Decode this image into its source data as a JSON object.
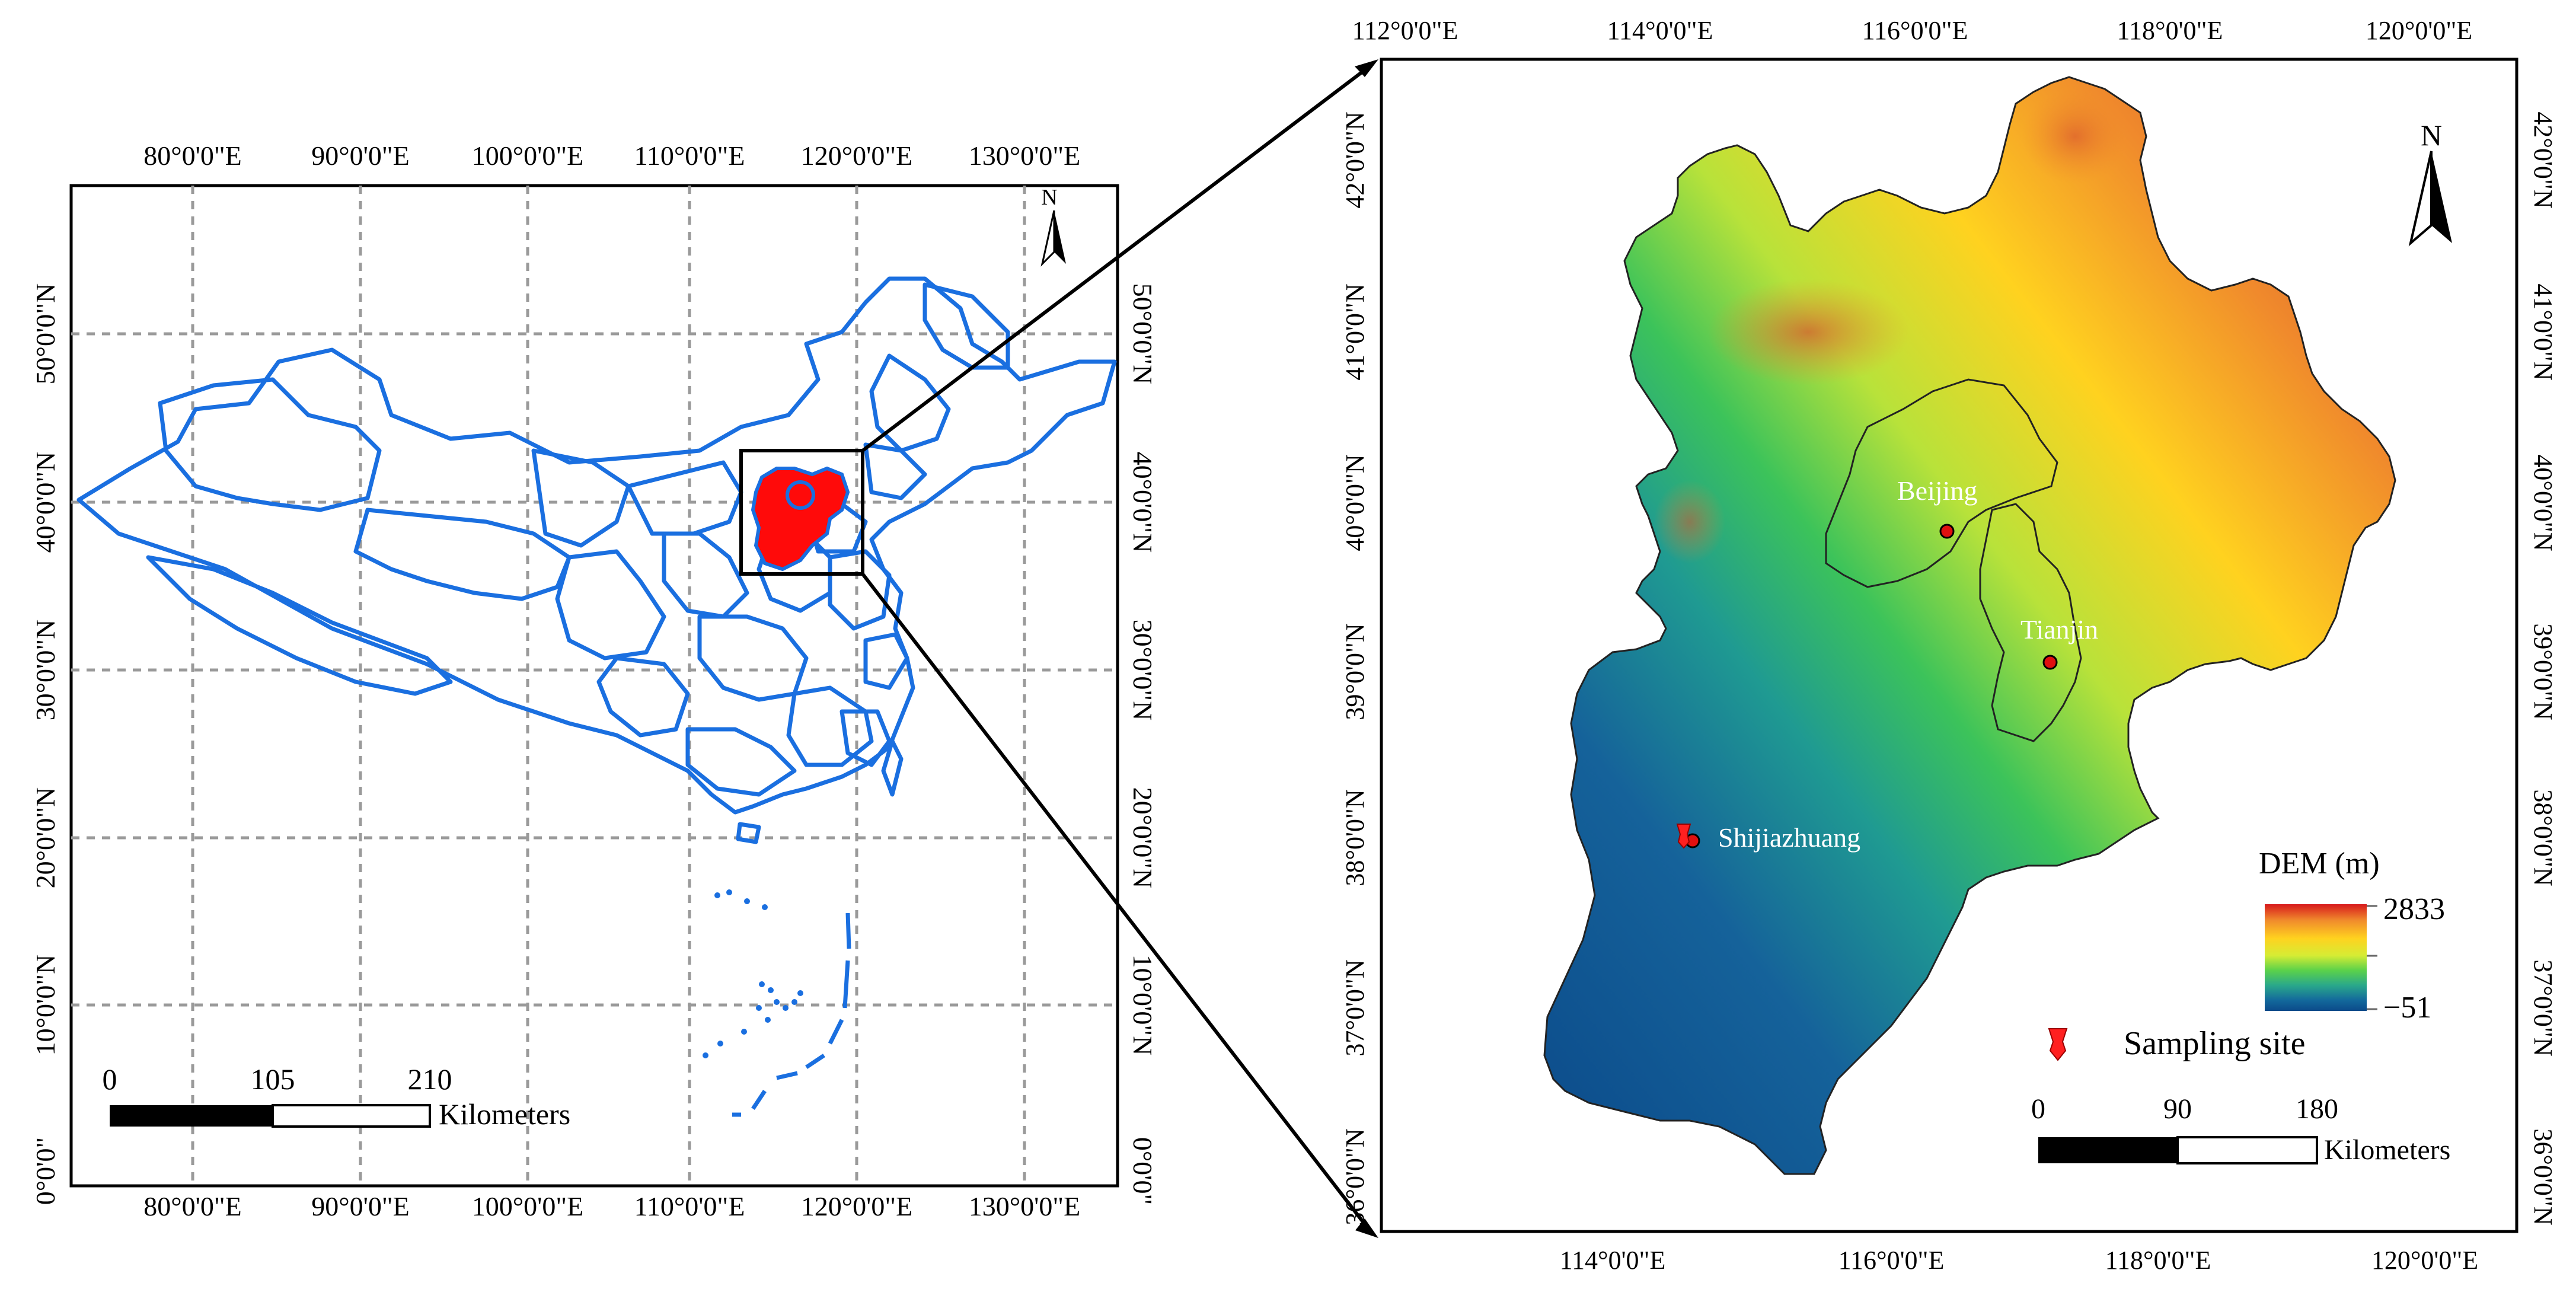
{
  "overview_map": {
    "top_lon_labels": [
      "80°0'0\"E",
      "90°0'0\"E",
      "100°0'0\"E",
      "110°0'0\"E",
      "120°0'0\"E",
      "130°0'0\"E"
    ],
    "bottom_lon_labels": [
      "80°0'0\"E",
      "90°0'0\"E",
      "100°0'0\"E",
      "110°0'0\"E",
      "120°0'0\"E",
      "130°0'0\"E"
    ],
    "lat_labels": [
      "50°0'0\"N",
      "40°0'0\"N",
      "30°0'0\"N",
      "20°0'0\"N",
      "10°0'0\"N",
      "0°0'0\""
    ],
    "north_label": "N",
    "scale_bar": {
      "ticks": [
        "0",
        "105",
        "210"
      ],
      "unit": "Kilometers"
    },
    "boundary_color": "#1a6fe0",
    "study_area_color": "#ff0000"
  },
  "detail_map": {
    "top_lon_labels": [
      "112°0'0\"E",
      "114°0'0\"E",
      "116°0'0\"E",
      "118°0'0\"E",
      "120°0'0\"E"
    ],
    "bottom_lon_labels": [
      "114°0'0\"E",
      "116°0'0\"E",
      "118°0'0\"E",
      "120°0'0\"E"
    ],
    "lat_labels": [
      "42°0'0\"N",
      "41°0'0\"N",
      "40°0'0\"N",
      "39°0'0\"N",
      "38°0'0\"N",
      "37°0'0\"N",
      "36°0'0\"N"
    ],
    "north_label": "N",
    "cities": [
      "Beijing",
      "Tianjin",
      "Shijiazhuang"
    ],
    "legend": {
      "title": "DEM (m)",
      "max_label": "2833",
      "min_label": "−51",
      "ramp_colors": [
        "#d7191c",
        "#f08a2c",
        "#ffd21f",
        "#d6ec34",
        "#5bd24a",
        "#2aa88a",
        "#13699c",
        "#0b4a8a"
      ],
      "sampling_label": "Sampling site"
    },
    "scale_bar": {
      "ticks": [
        "0",
        "90",
        "180"
      ],
      "unit": "Kilometers"
    }
  }
}
